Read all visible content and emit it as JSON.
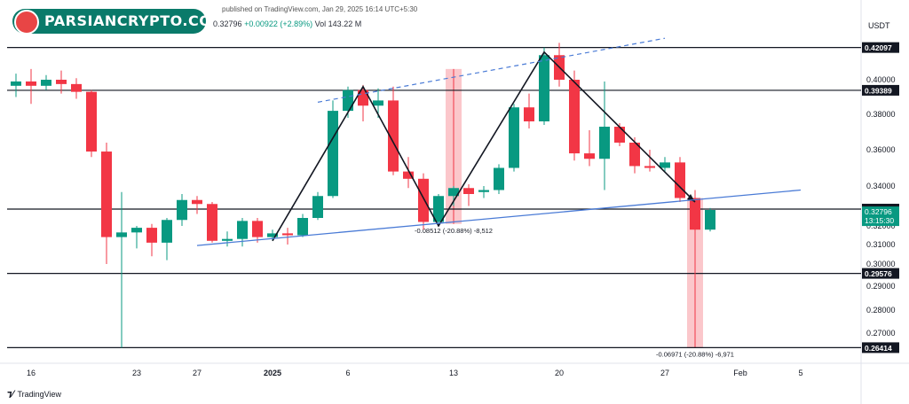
{
  "header": {
    "byline": "published on TradingView.com, Jan 29, 2025 16:14 UTC+5:30",
    "price": "0.32796",
    "change": "+0.00922 (+2.89%)",
    "volume_label": "Vol",
    "volume": "143.22 M"
  },
  "watermark": {
    "text": "PARSIANCRYPTO.COM"
  },
  "footer": {
    "brand": "TradingView"
  },
  "colors": {
    "up": "#089981",
    "down": "#f23645",
    "trend": "#2962ff",
    "pattern": "#131722"
  },
  "chart_data": {
    "type": "candlestick",
    "currency": "USDT",
    "y_axis_ticks": [
      0.4,
      0.38,
      0.36,
      0.34,
      0.32,
      0.31,
      0.3,
      0.29,
      0.28,
      0.27
    ],
    "x_axis_ticks": [
      {
        "label": "16",
        "index": 1
      },
      {
        "label": "23",
        "index": 8
      },
      {
        "label": "27",
        "index": 12
      },
      {
        "label": "2025",
        "index": 17
      },
      {
        "label": "6",
        "index": 22
      },
      {
        "label": "13",
        "index": 29
      },
      {
        "label": "20",
        "index": 36
      },
      {
        "label": "27",
        "index": 43
      },
      {
        "label": "Feb",
        "index": 48
      },
      {
        "label": "5",
        "index": 52
      }
    ],
    "horizontal_levels": [
      {
        "value": 0.42097,
        "label": "0.42097"
      },
      {
        "value": 0.39389,
        "label": "0.39389"
      },
      {
        "value": 0.32845,
        "label": "0.32845"
      },
      {
        "value": 0.29576,
        "label": "0.29576"
      },
      {
        "value": 0.26414,
        "label": "0.26414"
      }
    ],
    "current_price": {
      "value": 0.32796,
      "label": "0.32796",
      "countdown": "13:15:30"
    },
    "candles": [
      {
        "i": 0,
        "o": 0.3965,
        "h": 0.404,
        "l": 0.39,
        "c": 0.399
      },
      {
        "i": 1,
        "o": 0.399,
        "h": 0.407,
        "l": 0.386,
        "c": 0.3965
      },
      {
        "i": 2,
        "o": 0.3965,
        "h": 0.403,
        "l": 0.394,
        "c": 0.4
      },
      {
        "i": 3,
        "o": 0.4,
        "h": 0.406,
        "l": 0.392,
        "c": 0.3975
      },
      {
        "i": 4,
        "o": 0.3975,
        "h": 0.401,
        "l": 0.389,
        "c": 0.393
      },
      {
        "i": 5,
        "o": 0.393,
        "h": 0.394,
        "l": 0.356,
        "c": 0.359
      },
      {
        "i": 6,
        "o": 0.359,
        "h": 0.364,
        "l": 0.3,
        "c": 0.314
      },
      {
        "i": 7,
        "o": 0.314,
        "h": 0.337,
        "l": 0.2641,
        "c": 0.3165
      },
      {
        "i": 8,
        "o": 0.3165,
        "h": 0.32,
        "l": 0.308,
        "c": 0.319
      },
      {
        "i": 9,
        "o": 0.319,
        "h": 0.321,
        "l": 0.304,
        "c": 0.311
      },
      {
        "i": 10,
        "o": 0.311,
        "h": 0.324,
        "l": 0.302,
        "c": 0.323
      },
      {
        "i": 11,
        "o": 0.323,
        "h": 0.336,
        "l": 0.32,
        "c": 0.333
      },
      {
        "i": 12,
        "o": 0.333,
        "h": 0.335,
        "l": 0.326,
        "c": 0.331
      },
      {
        "i": 13,
        "o": 0.331,
        "h": 0.332,
        "l": 0.311,
        "c": 0.312
      },
      {
        "i": 14,
        "o": 0.312,
        "h": 0.317,
        "l": 0.309,
        "c": 0.313
      },
      {
        "i": 15,
        "o": 0.313,
        "h": 0.324,
        "l": 0.309,
        "c": 0.3225
      },
      {
        "i": 16,
        "o": 0.3225,
        "h": 0.324,
        "l": 0.311,
        "c": 0.314
      },
      {
        "i": 17,
        "o": 0.314,
        "h": 0.318,
        "l": 0.312,
        "c": 0.316
      },
      {
        "i": 18,
        "o": 0.316,
        "h": 0.319,
        "l": 0.31,
        "c": 0.315
      },
      {
        "i": 19,
        "o": 0.315,
        "h": 0.326,
        "l": 0.314,
        "c": 0.324
      },
      {
        "i": 20,
        "o": 0.324,
        "h": 0.337,
        "l": 0.323,
        "c": 0.335
      },
      {
        "i": 21,
        "o": 0.335,
        "h": 0.388,
        "l": 0.334,
        "c": 0.382
      },
      {
        "i": 22,
        "o": 0.382,
        "h": 0.396,
        "l": 0.378,
        "c": 0.394
      },
      {
        "i": 23,
        "o": 0.394,
        "h": 0.397,
        "l": 0.376,
        "c": 0.385
      },
      {
        "i": 24,
        "o": 0.385,
        "h": 0.395,
        "l": 0.378,
        "c": 0.388
      },
      {
        "i": 25,
        "o": 0.388,
        "h": 0.396,
        "l": 0.346,
        "c": 0.348
      },
      {
        "i": 26,
        "o": 0.348,
        "h": 0.356,
        "l": 0.339,
        "c": 0.344
      },
      {
        "i": 27,
        "o": 0.344,
        "h": 0.347,
        "l": 0.318,
        "c": 0.322
      },
      {
        "i": 28,
        "o": 0.322,
        "h": 0.336,
        "l": 0.32,
        "c": 0.335
      },
      {
        "i": 29,
        "o": 0.335,
        "h": 0.34,
        "l": 0.33,
        "c": 0.339
      },
      {
        "i": 30,
        "o": 0.339,
        "h": 0.341,
        "l": 0.33,
        "c": 0.336
      },
      {
        "i": 31,
        "o": 0.337,
        "h": 0.34,
        "l": 0.334,
        "c": 0.338
      },
      {
        "i": 32,
        "o": 0.338,
        "h": 0.352,
        "l": 0.336,
        "c": 0.35
      },
      {
        "i": 33,
        "o": 0.35,
        "h": 0.386,
        "l": 0.348,
        "c": 0.384
      },
      {
        "i": 34,
        "o": 0.384,
        "h": 0.392,
        "l": 0.372,
        "c": 0.376
      },
      {
        "i": 35,
        "o": 0.376,
        "h": 0.421,
        "l": 0.374,
        "c": 0.416
      },
      {
        "i": 36,
        "o": 0.416,
        "h": 0.424,
        "l": 0.396,
        "c": 0.4
      },
      {
        "i": 37,
        "o": 0.4,
        "h": 0.406,
        "l": 0.354,
        "c": 0.358
      },
      {
        "i": 38,
        "o": 0.358,
        "h": 0.371,
        "l": 0.351,
        "c": 0.355
      },
      {
        "i": 39,
        "o": 0.355,
        "h": 0.399,
        "l": 0.338,
        "c": 0.373
      },
      {
        "i": 40,
        "o": 0.373,
        "h": 0.375,
        "l": 0.362,
        "c": 0.364
      },
      {
        "i": 41,
        "o": 0.364,
        "h": 0.367,
        "l": 0.347,
        "c": 0.351
      },
      {
        "i": 42,
        "o": 0.351,
        "h": 0.36,
        "l": 0.348,
        "c": 0.35
      },
      {
        "i": 43,
        "o": 0.35,
        "h": 0.356,
        "l": 0.348,
        "c": 0.353
      },
      {
        "i": 44,
        "o": 0.353,
        "h": 0.356,
        "l": 0.332,
        "c": 0.334
      },
      {
        "i": 45,
        "o": 0.334,
        "h": 0.338,
        "l": 0.295,
        "c": 0.318
      },
      {
        "i": 46,
        "o": 0.318,
        "h": 0.329,
        "l": 0.317,
        "c": 0.328
      }
    ],
    "measure_boxes": [
      {
        "i_from": 29,
        "i_to": 29,
        "top": 0.407,
        "bottom": 0.321,
        "label": "-0.08512 (-20.88%) -8,512"
      },
      {
        "i_from": 45,
        "i_to": 45,
        "top": 0.334,
        "bottom": 0.2641,
        "label": "-0.06971 (-20.88%) -6,971"
      }
    ]
  }
}
